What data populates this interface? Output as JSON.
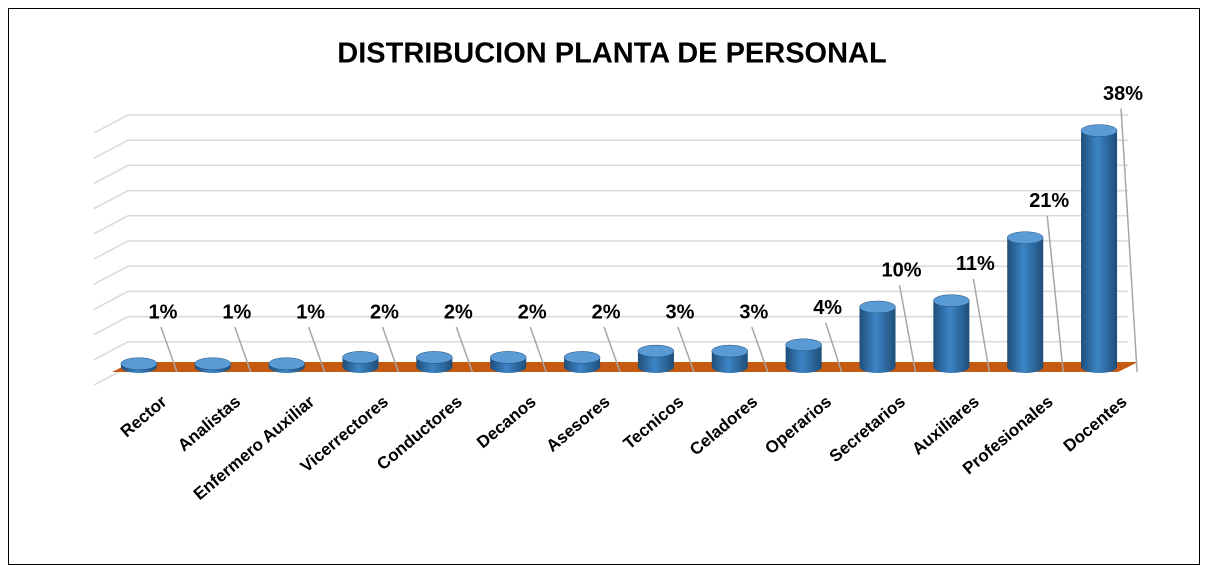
{
  "chart_data": {
    "type": "bar",
    "title": "DISTRIBUCION PLANTA DE PERSONAL",
    "categories": [
      "Rector",
      "Analistas",
      "Enfermero Auxiliar",
      "Vicerrectores",
      "Conductores",
      "Decanos",
      "Asesores",
      "Tecnicos",
      "Celadores",
      "Operarios",
      "Secretarios",
      "Auxiliares",
      "Profesionales",
      "Docentes"
    ],
    "values": [
      1,
      1,
      1,
      2,
      2,
      2,
      2,
      3,
      3,
      4,
      10,
      11,
      21,
      38
    ],
    "value_labels": [
      "1%",
      "1%",
      "1%",
      "2%",
      "2%",
      "2%",
      "2%",
      "3%",
      "3%",
      "4%",
      "10%",
      "11%",
      "21%",
      "38%"
    ],
    "color": "#2e75b6",
    "ylim": [
      0,
      40
    ],
    "yticks": [
      0,
      4,
      8,
      12,
      16,
      20,
      24,
      28,
      32,
      36,
      40
    ],
    "grid": true
  }
}
